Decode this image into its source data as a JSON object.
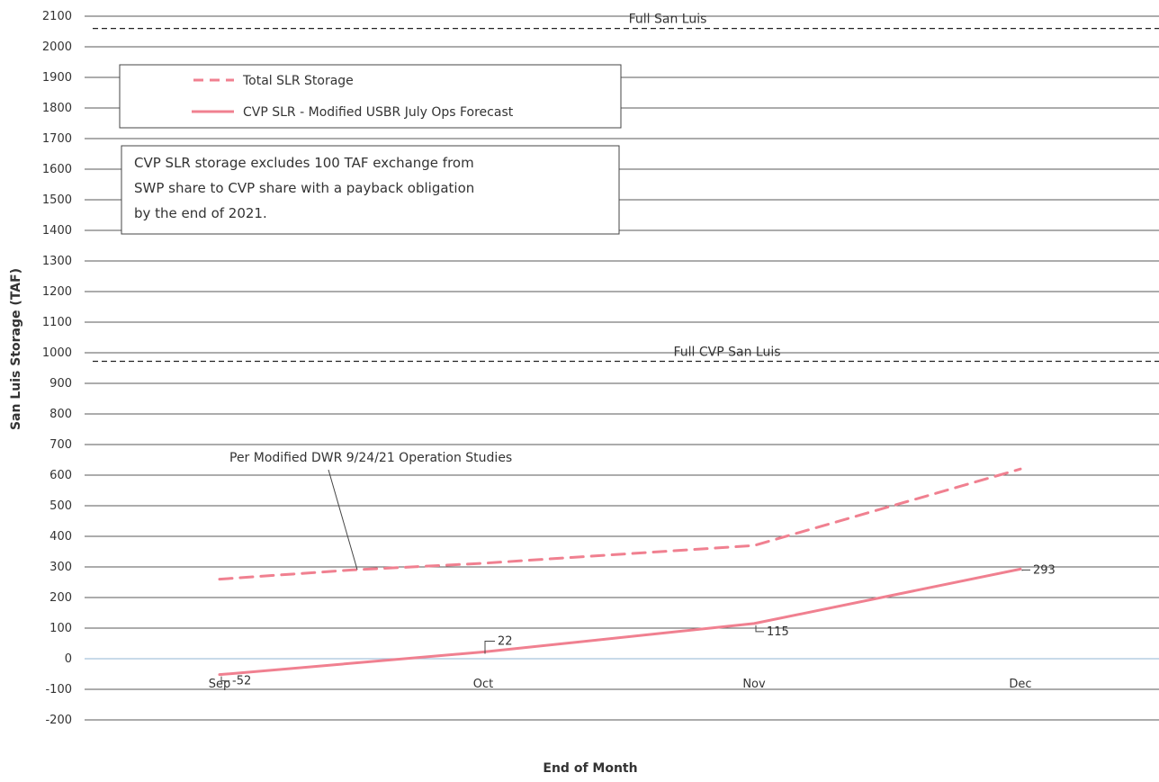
{
  "chart_data": {
    "type": "line",
    "title": "",
    "xlabel": "End of Month",
    "ylabel": "San Luis Storage (TAF)",
    "categories": [
      "Sep",
      "Oct",
      "Nov",
      "Dec"
    ],
    "ylim": [
      -200,
      2100
    ],
    "yticks": [
      2100,
      2000,
      1900,
      1800,
      1700,
      1600,
      1500,
      1400,
      1300,
      1200,
      1100,
      1000,
      900,
      800,
      700,
      600,
      500,
      400,
      300,
      200,
      100,
      0,
      -100,
      -200
    ],
    "grid": true,
    "legend_position": "top-left",
    "series": [
      {
        "name": "Total SLR Storage",
        "style": "dashed",
        "color": "#f08090",
        "x": [
          0,
          0.5,
          1,
          2,
          3
        ],
        "values": [
          260,
          290,
          312,
          370,
          620
        ]
      },
      {
        "name": "CVP SLR - Modified USBR July Ops Forecast",
        "style": "solid",
        "color": "#f08090",
        "x": [
          0,
          1,
          2,
          3
        ],
        "values": [
          -52,
          22,
          115,
          293
        ],
        "labels": [
          "-52",
          "22",
          "115",
          "293"
        ]
      }
    ],
    "reference_lines": [
      {
        "label": "Full San Luis",
        "value": 2060
      },
      {
        "label": "Full CVP San Luis",
        "value": 972
      }
    ],
    "annotations": {
      "callout": "Per Modified DWR 9/24/21 Operation Studies",
      "note": "CVP SLR  storage excludes 100 TAF exchange from SWP share to CVP share with a payback obligation by the end of 2021."
    },
    "colors": {
      "series": "#f08090",
      "zero_line": "#a7c3dc",
      "grid": "#222222"
    }
  }
}
